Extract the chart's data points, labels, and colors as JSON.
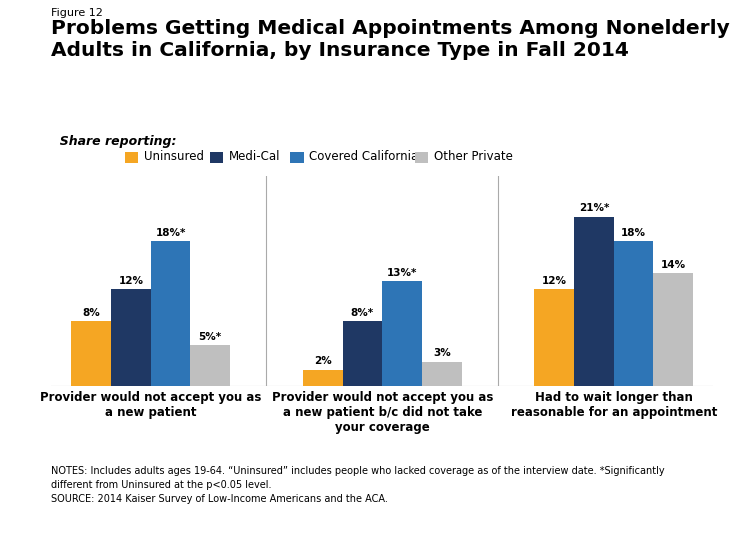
{
  "figure_label": "Figure 12",
  "title": "Problems Getting Medical Appointments Among Nonelderly\nAdults in California, by Insurance Type in Fall 2014",
  "subtitle": "  Share reporting:",
  "categories": [
    "Provider would not accept you as\na new patient",
    "Provider would not accept you as\na new patient b/c did not take\nyour coverage",
    "Had to wait longer than\nreasonable for an appointment"
  ],
  "series": {
    "Uninsured": [
      8,
      2,
      12
    ],
    "Medi-Cal": [
      12,
      8,
      21
    ],
    "Covered California": [
      18,
      13,
      18
    ],
    "Other Private": [
      5,
      3,
      14
    ]
  },
  "labels": {
    "Uninsured": [
      "8%",
      "2%",
      "12%"
    ],
    "Medi-Cal": [
      "12%",
      "8%*",
      "21%*"
    ],
    "Covered California": [
      "18%*",
      "13%*",
      "18%"
    ],
    "Other Private": [
      "5%*",
      "3%",
      "14%"
    ]
  },
  "colors": {
    "Uninsured": "#F5A623",
    "Medi-Cal": "#1F3864",
    "Covered California": "#2E75B6",
    "Other Private": "#BFBFBF"
  },
  "ylim": [
    0,
    26
  ],
  "bar_width": 0.18,
  "notes": "NOTES: Includes adults ages 19-64. “Uninsured” includes people who lacked coverage as of the interview date. *Significantly\ndifferent from Uninsured at the p<0.05 level.\nSOURCE: 2014 Kaiser Survey of Low-Income Americans and the ACA.",
  "bg_color": "#FFFFFF"
}
